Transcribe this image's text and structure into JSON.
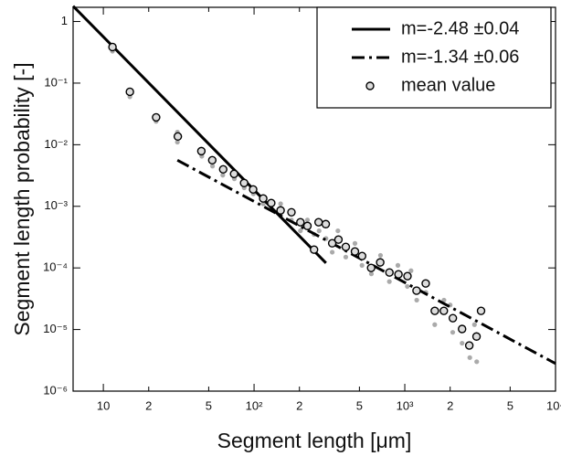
{
  "chart_data": {
    "type": "scatter",
    "x_label": "Segment length [μm]",
    "y_label": "Segment length probability [-]",
    "xscale": "log",
    "yscale": "log",
    "xlim": [
      6.3,
      10000
    ],
    "ylim": [
      1e-06,
      1.7
    ],
    "xticks": [
      {
        "value": 10,
        "label": "10"
      },
      {
        "value": 20,
        "label": "2"
      },
      {
        "value": 50,
        "label": "5"
      },
      {
        "value": 100,
        "label": "10²"
      },
      {
        "value": 200,
        "label": "2"
      },
      {
        "value": 500,
        "label": "5"
      },
      {
        "value": 1000,
        "label": "10³"
      },
      {
        "value": 2000,
        "label": "2"
      },
      {
        "value": 5000,
        "label": "5"
      },
      {
        "value": 10000,
        "label": "10⁴"
      }
    ],
    "yticks": [
      1,
      {
        "value": 0.1,
        "label": "10⁻¹"
      },
      {
        "value": 0.01,
        "label": "10⁻²"
      },
      {
        "value": 0.001,
        "label": "10⁻³"
      },
      {
        "value": 0.0001,
        "label": "10⁻⁴"
      },
      {
        "value": 1e-05,
        "label": "10⁻⁵"
      },
      {
        "value": 1e-06,
        "label": "10⁻⁶"
      }
    ],
    "legend": "upper right",
    "series": [
      {
        "color": "#aaaaaa",
        "marker": "dot",
        "x": [
          11.5,
          15,
          22.4,
          31,
          31,
          45,
          53,
          62,
          74,
          86,
          99,
          115,
          130,
          150,
          150,
          177,
          203,
          226,
          250,
          270,
          300,
          330,
          360,
          406,
          467,
          520,
          600,
          690,
          790,
          900,
          1040,
          1100,
          1200,
          1380,
          1580,
          1820,
          2000,
          2080,
          2400,
          2700,
          2900,
          3000
        ],
        "values": [
          0.33,
          0.06,
          0.024,
          0.011,
          0.016,
          0.0065,
          0.0045,
          0.0032,
          0.0028,
          0.002,
          0.0016,
          0.0011,
          0.0009,
          0.0007,
          0.0011,
          0.0006,
          0.0004,
          0.0006,
          0.00035,
          0.0004,
          0.0003,
          0.00018,
          0.0004,
          0.00015,
          0.00025,
          0.00011,
          8e-05,
          0.00016,
          6e-05,
          0.00011,
          5e-05,
          9e-05,
          3e-05,
          4e-05,
          1.2e-05,
          3e-05,
          2.5e-05,
          9e-06,
          6e-06,
          3.5e-06,
          1.2e-05,
          3e-06
        ]
      },
      {
        "name": "m=-2.48 ±0.04",
        "color": "#000000",
        "style": "solid",
        "x": [
          6.3,
          300
        ],
        "values": [
          1.78,
          0.00012
        ]
      },
      {
        "name": "m=-1.34 ±0.06",
        "color": "#000000",
        "style": "dashdot",
        "x": [
          31,
          10000
        ],
        "values": [
          0.0056,
          2.8e-06
        ]
      },
      {
        "name": "mean value",
        "color": "#000000",
        "marker": "circle",
        "x": [
          11.5,
          15,
          22.4,
          31.2,
          44.7,
          52.8,
          62.4,
          73.7,
          85.9,
          98.6,
          115,
          130,
          150,
          177,
          203,
          226,
          268,
          250,
          299,
          330,
          363,
          406,
          467,
          521,
          598,
          687,
          791,
          908,
          1042,
          1197,
          1377,
          1581,
          1816,
          2084,
          2399,
          2679,
          2992,
          3206
        ],
        "values": [
          0.385,
          0.0723,
          0.0278,
          0.0136,
          0.00787,
          0.0056,
          0.00398,
          0.00336,
          0.00239,
          0.00188,
          0.00134,
          0.00113,
          0.000858,
          0.000801,
          0.000551,
          0.00048,
          0.000551,
          0.000198,
          0.000514,
          0.000251,
          0.000288,
          0.000219,
          0.000185,
          0.000156,
          0.0001,
          0.000123,
          8.43e-05,
          7.87e-05,
          7.36e-05,
          4.27e-05,
          5.6e-05,
          2.01e-05,
          2.01e-05,
          1.53e-05,
          1.02e-05,
          5.5e-06,
          7.7e-06,
          2.01e-05
        ]
      }
    ]
  }
}
